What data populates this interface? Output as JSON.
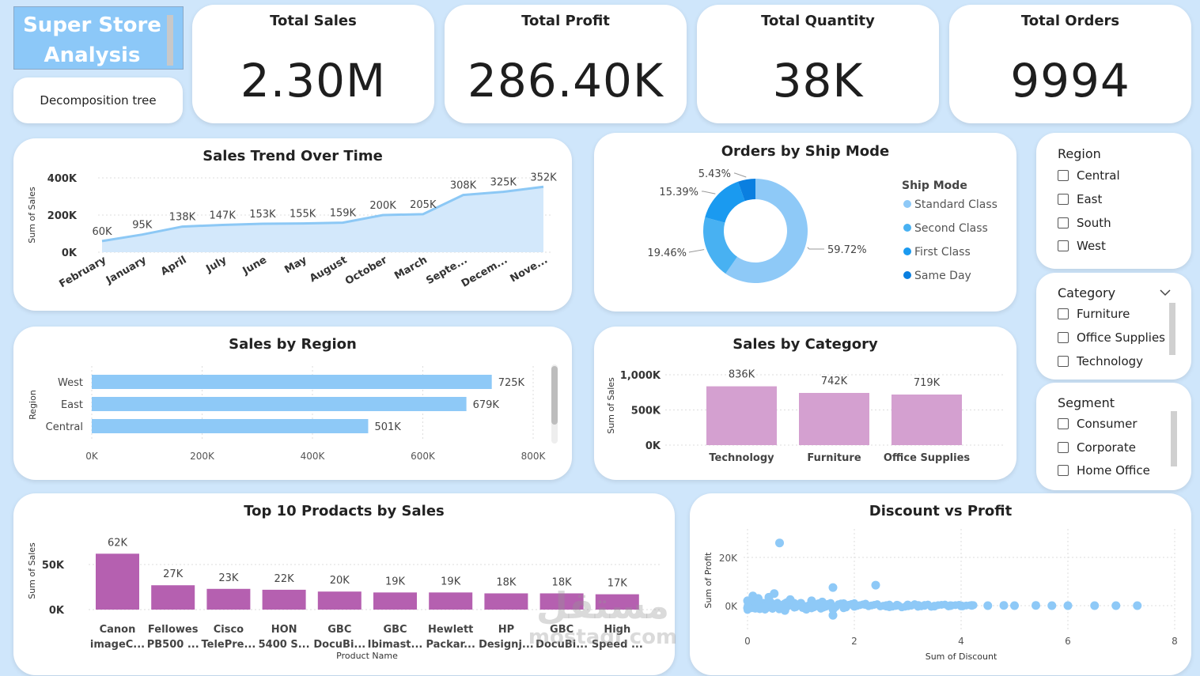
{
  "header": {
    "logo_line1": "Super Store",
    "logo_line2": "Analysis",
    "decomp_button": "Decomposition tree"
  },
  "kpis": [
    {
      "title": "Total Sales",
      "value": "2.30M"
    },
    {
      "title": "Total Profit",
      "value": "286.40K"
    },
    {
      "title": "Total Quantity",
      "value": "38K"
    },
    {
      "title": "Total Orders",
      "value": "9994"
    }
  ],
  "slicers": {
    "region": {
      "title": "Region",
      "items": [
        "Central",
        "East",
        "South",
        "West"
      ]
    },
    "category": {
      "title": "Category",
      "items": [
        "Furniture",
        "Office Supplies",
        "Technology"
      ]
    },
    "segment": {
      "title": "Segment",
      "items": [
        "Consumer",
        "Corporate",
        "Home Office"
      ]
    }
  },
  "watermark": {
    "line1": "مستقل",
    "line2": "mostaql.com"
  },
  "chart_data": [
    {
      "id": "trend",
      "type": "area",
      "title": "Sales Trend Over Time",
      "ylabel": "Sum of Sales",
      "xlabel": "",
      "ylim": [
        0,
        400000
      ],
      "yticks": [
        "0K",
        "200K",
        "400K"
      ],
      "categories": [
        "February",
        "January",
        "April",
        "July",
        "June",
        "May",
        "August",
        "October",
        "March",
        "Septe...",
        "Decem...",
        "Nove..."
      ],
      "values": [
        60000,
        95000,
        138000,
        147000,
        153000,
        155000,
        159000,
        200000,
        205000,
        308000,
        325000,
        352000
      ],
      "labels": [
        "60K",
        "95K",
        "138K",
        "147K",
        "153K",
        "155K",
        "159K",
        "200K",
        "205K",
        "308K",
        "325K",
        "352K"
      ],
      "color": "#8cc8f5"
    },
    {
      "id": "ship",
      "type": "pie",
      "title": "Orders by Ship Mode",
      "legend_title": "Ship Mode",
      "categories": [
        "Standard Class",
        "Second Class",
        "First Class",
        "Same Day"
      ],
      "values": [
        59.72,
        19.46,
        15.39,
        5.43
      ],
      "labels": [
        "59.72%",
        "19.46%",
        "15.39%",
        "5.43%"
      ],
      "colors": [
        "#8ec9f7",
        "#48b1f2",
        "#1a9af0",
        "#0a7fe0"
      ]
    },
    {
      "id": "region",
      "type": "bar",
      "orientation": "horizontal",
      "title": "Sales by Region",
      "ylabel": "Region",
      "categories": [
        "West",
        "East",
        "Central"
      ],
      "values": [
        725000,
        679000,
        501000
      ],
      "labels": [
        "725K",
        "679K",
        "501K"
      ],
      "xlim": [
        0,
        800000
      ],
      "xticks": [
        "0K",
        "200K",
        "400K",
        "600K",
        "800K"
      ],
      "color": "#8ec9f7"
    },
    {
      "id": "category",
      "type": "bar",
      "title": "Sales by Category",
      "ylabel": "Sum of Sales",
      "categories": [
        "Technology",
        "Furniture",
        "Office Supplies"
      ],
      "values": [
        836000,
        742000,
        719000
      ],
      "labels": [
        "836K",
        "742K",
        "719K"
      ],
      "ylim": [
        0,
        1000000
      ],
      "yticks": [
        "0K",
        "500K",
        "1,000K"
      ],
      "color": "#d4a0d0"
    },
    {
      "id": "top10",
      "type": "bar",
      "title": "Top 10 Prodacts by Sales",
      "ylabel": "Sum of Sales",
      "xlabel": "Product Name",
      "categories": [
        [
          "Canon",
          "imageC..."
        ],
        [
          "Fellowes",
          "PB500 ..."
        ],
        [
          "Cisco",
          "TelePre..."
        ],
        [
          "HON",
          "5400 S..."
        ],
        [
          "GBC",
          "DocuBi..."
        ],
        [
          "GBC",
          "Ibimast..."
        ],
        [
          "Hewlett",
          "Packar..."
        ],
        [
          "HP",
          "Designj..."
        ],
        [
          "GBC",
          "DocuBi..."
        ],
        [
          "High",
          "Speed ..."
        ]
      ],
      "values": [
        62000,
        27000,
        23000,
        22000,
        20000,
        19000,
        19000,
        18000,
        18000,
        17000
      ],
      "labels": [
        "62K",
        "27K",
        "23K",
        "22K",
        "20K",
        "19K",
        "19K",
        "18K",
        "18K",
        "17K"
      ],
      "ylim": [
        0,
        75000
      ],
      "yticks": [
        "0K",
        "50K"
      ],
      "color": "#b560b0"
    },
    {
      "id": "scatter",
      "type": "scatter",
      "title": "Discount vs Profit",
      "xlabel": "Sum of Discount",
      "ylabel": "Sum of Profit",
      "xlim": [
        0,
        8
      ],
      "ylim": [
        -5000,
        27000
      ],
      "xticks": [
        "0",
        "2",
        "4",
        "6",
        "8"
      ],
      "yticks": [
        "0K",
        "20K"
      ],
      "points": [
        [
          0.6,
          26000
        ],
        [
          1.6,
          7500
        ],
        [
          2.4,
          8500
        ],
        [
          0.5,
          5000
        ],
        [
          0.2,
          3000
        ],
        [
          0.8,
          2500
        ],
        [
          1.2,
          2000
        ],
        [
          1.6,
          -1500
        ],
        [
          1.6,
          -4000
        ],
        [
          0.3,
          -1000
        ],
        [
          0.9,
          -500
        ],
        [
          1.4,
          1500
        ],
        [
          2.0,
          -300
        ],
        [
          2.8,
          200
        ],
        [
          3.5,
          -200
        ],
        [
          4.2,
          100
        ],
        [
          5.0,
          0
        ],
        [
          5.4,
          100
        ],
        [
          5.7,
          0
        ],
        [
          6.0,
          0
        ],
        [
          6.5,
          0
        ],
        [
          6.9,
          0
        ],
        [
          7.3,
          0
        ],
        [
          0.1,
          4000
        ],
        [
          0.4,
          3500
        ],
        [
          1.0,
          1000
        ],
        [
          1.8,
          800
        ],
        [
          2.2,
          500
        ],
        [
          3.0,
          300
        ],
        [
          3.8,
          0
        ],
        [
          4.5,
          0
        ],
        [
          4.8,
          100
        ],
        [
          0.7,
          -2000
        ],
        [
          1.1,
          -1500
        ],
        [
          1.3,
          500
        ],
        [
          0.0,
          2000
        ],
        [
          0.0,
          -1000
        ],
        [
          2.6,
          -200
        ],
        [
          3.2,
          100
        ],
        [
          4.0,
          -100
        ]
      ],
      "color": "#8ec9f7"
    }
  ]
}
